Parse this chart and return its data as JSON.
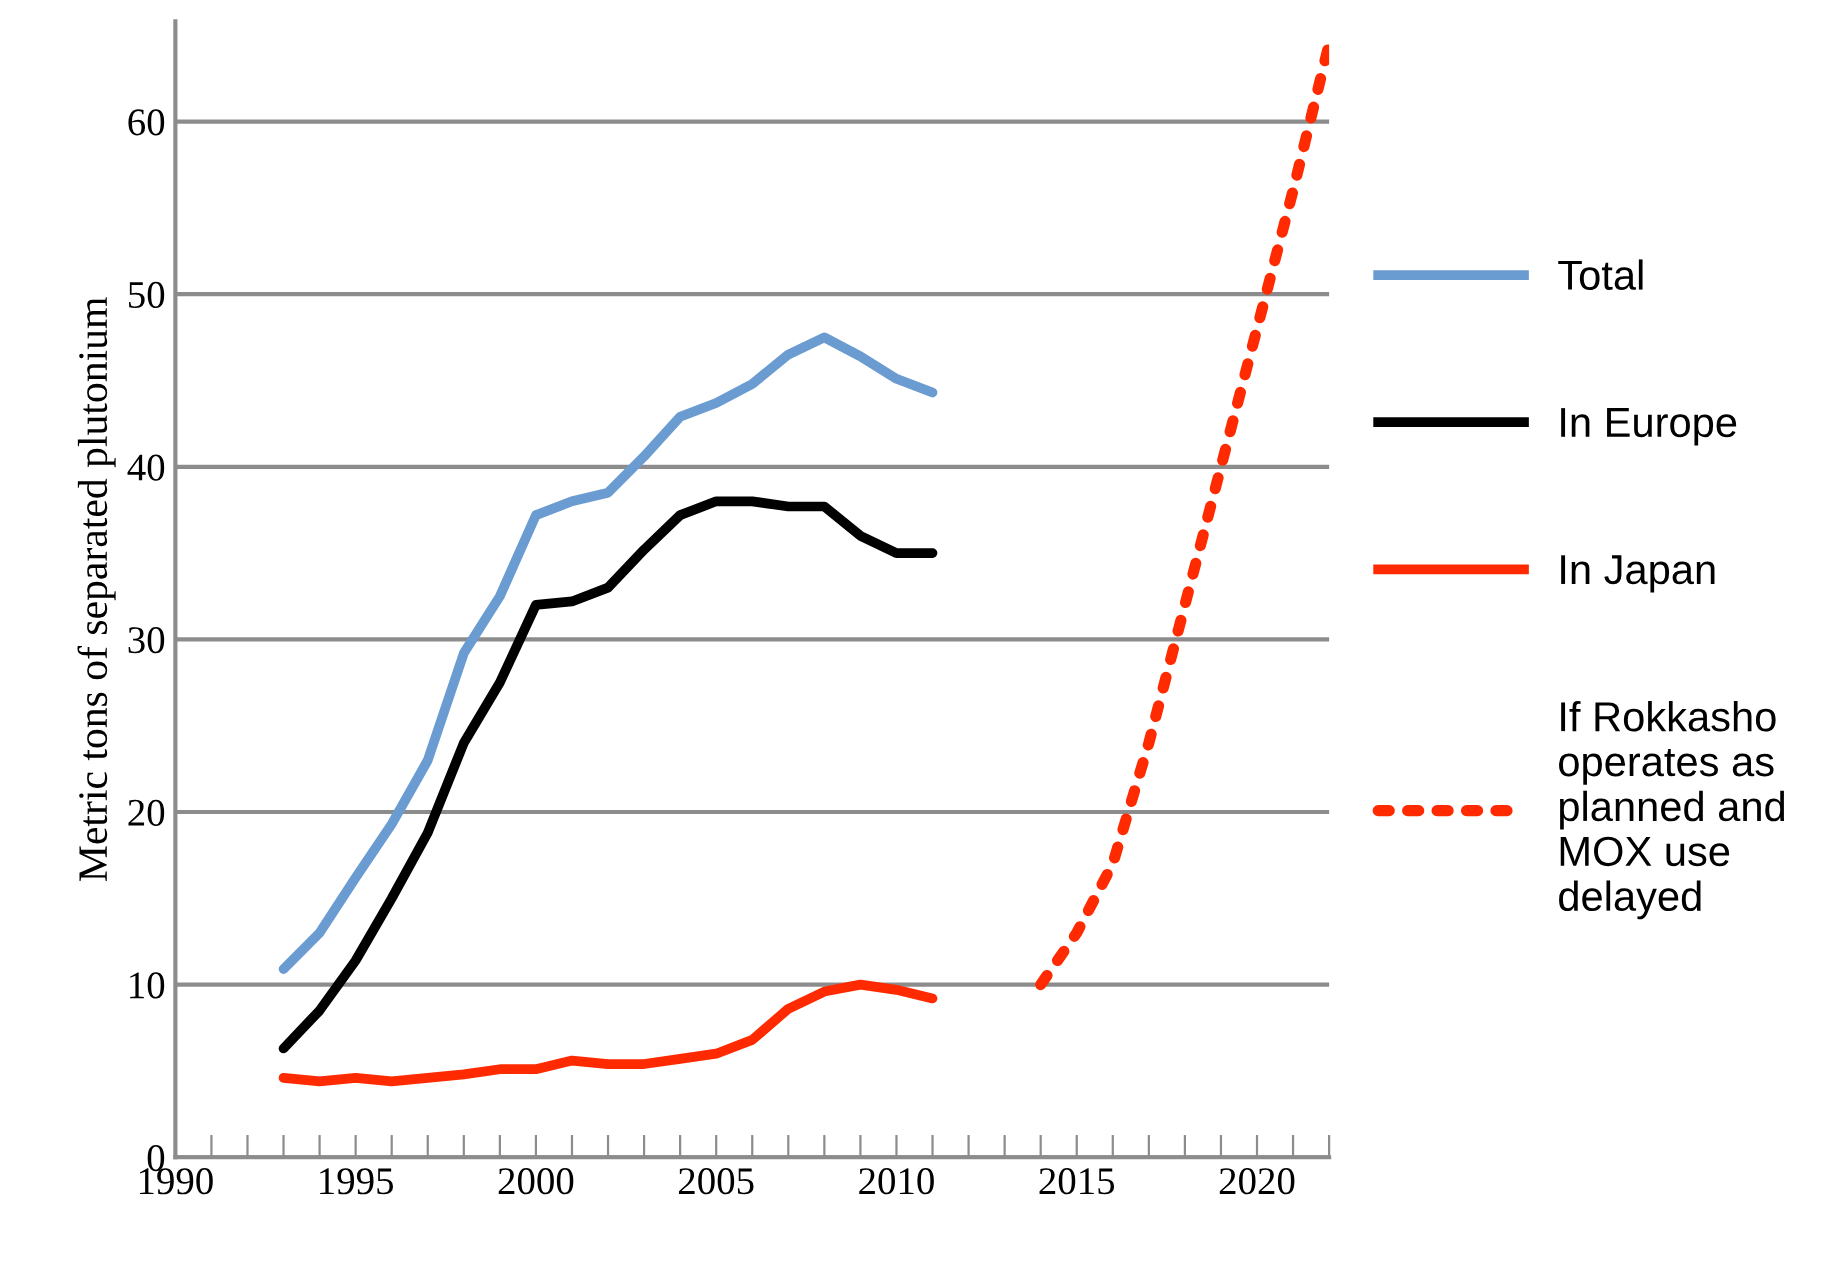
{
  "chart_data": {
    "type": "line",
    "ylabel": "Metric tons of separated plutonium",
    "xlim": [
      1990,
      2022
    ],
    "ylim": [
      0,
      65.8
    ],
    "xticks": [
      1990,
      {
        "value": 1991,
        "label": null
      },
      {
        "value": 1992,
        "label": null
      },
      {
        "value": 1993,
        "label": null
      },
      {
        "value": 1994,
        "label": null
      },
      1995,
      {
        "value": 1996,
        "label": null
      },
      {
        "value": 1997,
        "label": null
      },
      {
        "value": 1998,
        "label": null
      },
      {
        "value": 1999,
        "label": null
      },
      2000,
      {
        "value": 2001,
        "label": null
      },
      {
        "value": 2002,
        "label": null
      },
      {
        "value": 2003,
        "label": null
      },
      {
        "value": 2004,
        "label": null
      },
      2005,
      {
        "value": 2006,
        "label": null
      },
      {
        "value": 2007,
        "label": null
      },
      {
        "value": 2008,
        "label": null
      },
      {
        "value": 2009,
        "label": null
      },
      2010,
      {
        "value": 2011,
        "label": null
      },
      {
        "value": 2012,
        "label": null
      },
      {
        "value": 2013,
        "label": null
      },
      {
        "value": 2014,
        "label": null
      },
      2015,
      {
        "value": 2016,
        "label": null
      },
      {
        "value": 2017,
        "label": null
      },
      {
        "value": 2018,
        "label": null
      },
      {
        "value": 2019,
        "label": null
      },
      2020,
      {
        "value": 2021,
        "label": null
      },
      {
        "value": 2022,
        "label": null
      }
    ],
    "yticks": [
      0,
      10,
      20,
      30,
      40,
      50,
      60
    ],
    "grid": "y",
    "legend": "right",
    "series": [
      {
        "name": "Total",
        "color": "#6a9bd1",
        "line_style": "solid",
        "x": [
          1993,
          1994,
          1995,
          1996,
          1997,
          1998,
          1999,
          2000,
          2001,
          2002,
          2003,
          2004,
          2005,
          2006,
          2007,
          2008,
          2009,
          2010,
          2011
        ],
        "values": [
          10.9,
          13.0,
          16.2,
          19.3,
          23.0,
          29.2,
          32.5,
          37.2,
          38.0,
          38.5,
          40.6,
          42.9,
          43.7,
          44.8,
          46.5,
          47.5,
          46.4,
          45.1,
          44.3
        ]
      },
      {
        "name": "In Europe",
        "color": "#000000",
        "line_style": "solid",
        "x": [
          1993,
          1994,
          1995,
          1996,
          1997,
          1998,
          1999,
          2000,
          2001,
          2002,
          2003,
          2004,
          2005,
          2006,
          2007,
          2008,
          2009,
          2010,
          2011
        ],
        "values": [
          6.3,
          8.5,
          11.4,
          15.0,
          18.8,
          24.0,
          27.5,
          32.0,
          32.2,
          33.0,
          35.2,
          37.2,
          38.0,
          38.0,
          37.7,
          37.7,
          36.0,
          35.0,
          35.0
        ]
      },
      {
        "name": "In Japan",
        "color": "#ff2a00",
        "line_style": "solid",
        "x": [
          1993,
          1994,
          1995,
          1996,
          1997,
          1998,
          1999,
          2000,
          2001,
          2002,
          2003,
          2004,
          2005,
          2006,
          2007,
          2008,
          2009,
          2010,
          2011
        ],
        "values": [
          4.6,
          4.4,
          4.6,
          4.4,
          4.6,
          4.8,
          5.1,
          5.1,
          5.6,
          5.4,
          5.4,
          5.7,
          6.0,
          6.8,
          8.6,
          9.6,
          10.0,
          9.7,
          9.2
        ]
      },
      {
        "name": "If Rokkasho operates as planned and MOX use delayed",
        "color": "#ff2a00",
        "line_style": "dotted",
        "x": [
          2014,
          2015,
          2016,
          2017,
          2018,
          2019,
          2020,
          2021,
          2022
        ],
        "values": [
          10,
          13,
          17,
          24,
          32,
          40,
          48,
          56,
          64.5
        ]
      }
    ]
  }
}
